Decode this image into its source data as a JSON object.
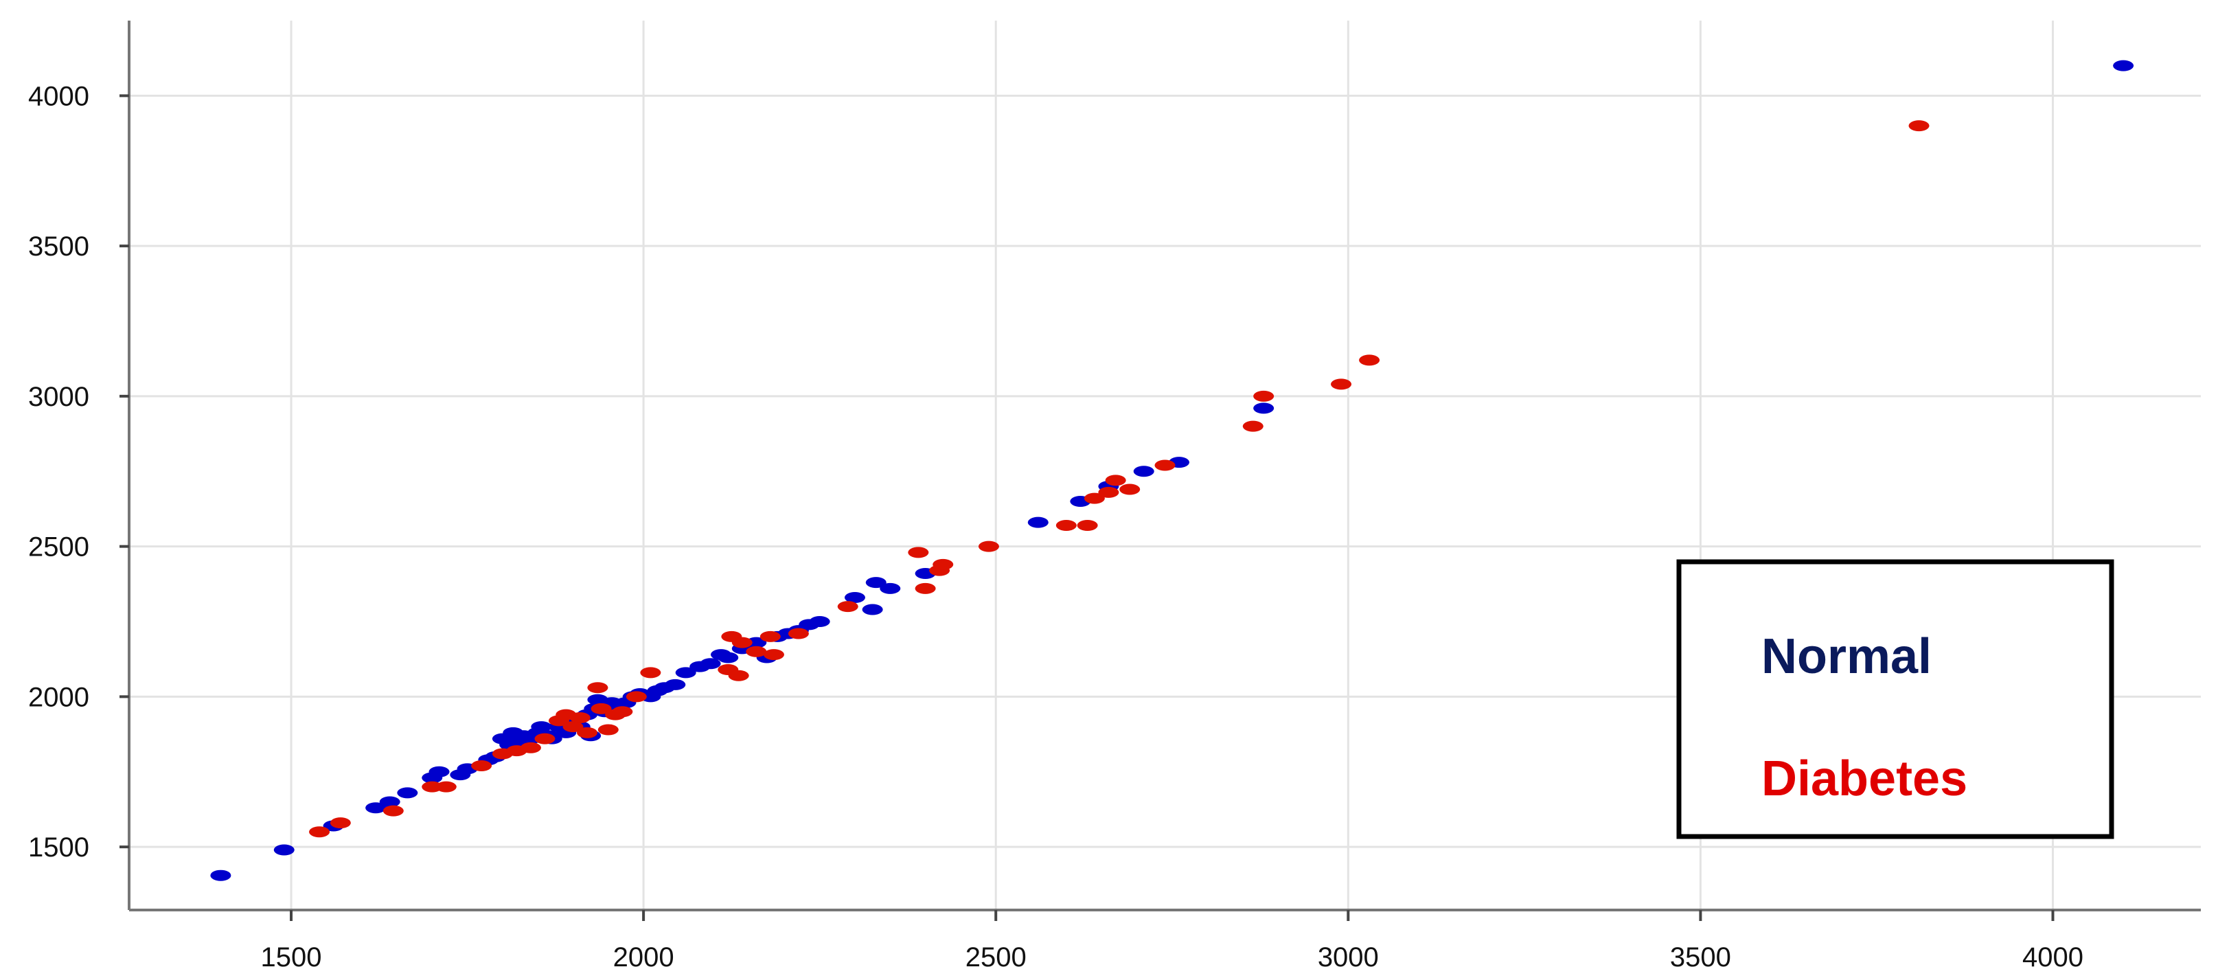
{
  "chart_data": {
    "type": "scatter",
    "title": "",
    "xlabel": "",
    "ylabel": "",
    "xlim": [
      1270,
      4210
    ],
    "ylim": [
      1290,
      4250
    ],
    "x_ticks": [
      1500,
      2000,
      2500,
      3000,
      3500,
      4000
    ],
    "y_ticks": [
      1500,
      2000,
      2500,
      3000,
      3500,
      4000
    ],
    "x_tick_labels": [
      "1500",
      "2000",
      "2500",
      "3000",
      "3500",
      "4000"
    ],
    "y_tick_labels": [
      "1500",
      "2000",
      "2500",
      "3000",
      "3500",
      "4000"
    ],
    "grid": true,
    "legend_position": "bottom-right",
    "series": [
      {
        "name": "Normal",
        "color": "#0000cc",
        "legend_color": "#0a1a5c",
        "points": [
          [
            1400,
            1405
          ],
          [
            1490,
            1490
          ],
          [
            1560,
            1570
          ],
          [
            1620,
            1630
          ],
          [
            1640,
            1650
          ],
          [
            1665,
            1680
          ],
          [
            1700,
            1730
          ],
          [
            1710,
            1750
          ],
          [
            1740,
            1740
          ],
          [
            1750,
            1760
          ],
          [
            1780,
            1790
          ],
          [
            1790,
            1800
          ],
          [
            1800,
            1860
          ],
          [
            1810,
            1840
          ],
          [
            1815,
            1880
          ],
          [
            1825,
            1850
          ],
          [
            1830,
            1870
          ],
          [
            1840,
            1860
          ],
          [
            1850,
            1880
          ],
          [
            1855,
            1900
          ],
          [
            1865,
            1870
          ],
          [
            1870,
            1860
          ],
          [
            1880,
            1900
          ],
          [
            1890,
            1880
          ],
          [
            1900,
            1910
          ],
          [
            1910,
            1900
          ],
          [
            1920,
            1940
          ],
          [
            1925,
            1870
          ],
          [
            1930,
            1960
          ],
          [
            1935,
            1990
          ],
          [
            1945,
            1950
          ],
          [
            1955,
            1980
          ],
          [
            1965,
            1960
          ],
          [
            1975,
            1980
          ],
          [
            1985,
            2000
          ],
          [
            1995,
            2010
          ],
          [
            2010,
            2000
          ],
          [
            2020,
            2020
          ],
          [
            2030,
            2030
          ],
          [
            2045,
            2040
          ],
          [
            2060,
            2080
          ],
          [
            2080,
            2100
          ],
          [
            2095,
            2110
          ],
          [
            2110,
            2140
          ],
          [
            2120,
            2130
          ],
          [
            2140,
            2160
          ],
          [
            2160,
            2180
          ],
          [
            2175,
            2130
          ],
          [
            2190,
            2200
          ],
          [
            2205,
            2210
          ],
          [
            2220,
            2220
          ],
          [
            2235,
            2240
          ],
          [
            2250,
            2250
          ],
          [
            2300,
            2330
          ],
          [
            2325,
            2290
          ],
          [
            2330,
            2380
          ],
          [
            2350,
            2360
          ],
          [
            2400,
            2410
          ],
          [
            2560,
            2580
          ],
          [
            2620,
            2650
          ],
          [
            2660,
            2700
          ],
          [
            2710,
            2750
          ],
          [
            2760,
            2780
          ],
          [
            2880,
            2960
          ],
          [
            4100,
            4100
          ]
        ]
      },
      {
        "name": "Diabetes",
        "color": "#dd1100",
        "legend_color": "#e00000",
        "points": [
          [
            1540,
            1550
          ],
          [
            1570,
            1580
          ],
          [
            1645,
            1620
          ],
          [
            1700,
            1700
          ],
          [
            1720,
            1700
          ],
          [
            1770,
            1770
          ],
          [
            1800,
            1810
          ],
          [
            1820,
            1820
          ],
          [
            1840,
            1830
          ],
          [
            1860,
            1860
          ],
          [
            1880,
            1920
          ],
          [
            1890,
            1940
          ],
          [
            1900,
            1900
          ],
          [
            1910,
            1930
          ],
          [
            1920,
            1880
          ],
          [
            1935,
            2030
          ],
          [
            1940,
            1960
          ],
          [
            1950,
            1890
          ],
          [
            1960,
            1940
          ],
          [
            1970,
            1950
          ],
          [
            1990,
            2000
          ],
          [
            2010,
            2080
          ],
          [
            2120,
            2090
          ],
          [
            2125,
            2200
          ],
          [
            2135,
            2070
          ],
          [
            2140,
            2180
          ],
          [
            2160,
            2150
          ],
          [
            2180,
            2200
          ],
          [
            2185,
            2140
          ],
          [
            2220,
            2210
          ],
          [
            2290,
            2300
          ],
          [
            2390,
            2480
          ],
          [
            2400,
            2360
          ],
          [
            2420,
            2420
          ],
          [
            2425,
            2440
          ],
          [
            2490,
            2500
          ],
          [
            2600,
            2570
          ],
          [
            2630,
            2570
          ],
          [
            2640,
            2660
          ],
          [
            2660,
            2680
          ],
          [
            2670,
            2720
          ],
          [
            2690,
            2690
          ],
          [
            2740,
            2770
          ],
          [
            2865,
            2900
          ],
          [
            2880,
            3000
          ],
          [
            2990,
            3040
          ],
          [
            3030,
            3120
          ],
          [
            3810,
            3900
          ]
        ]
      }
    ]
  }
}
